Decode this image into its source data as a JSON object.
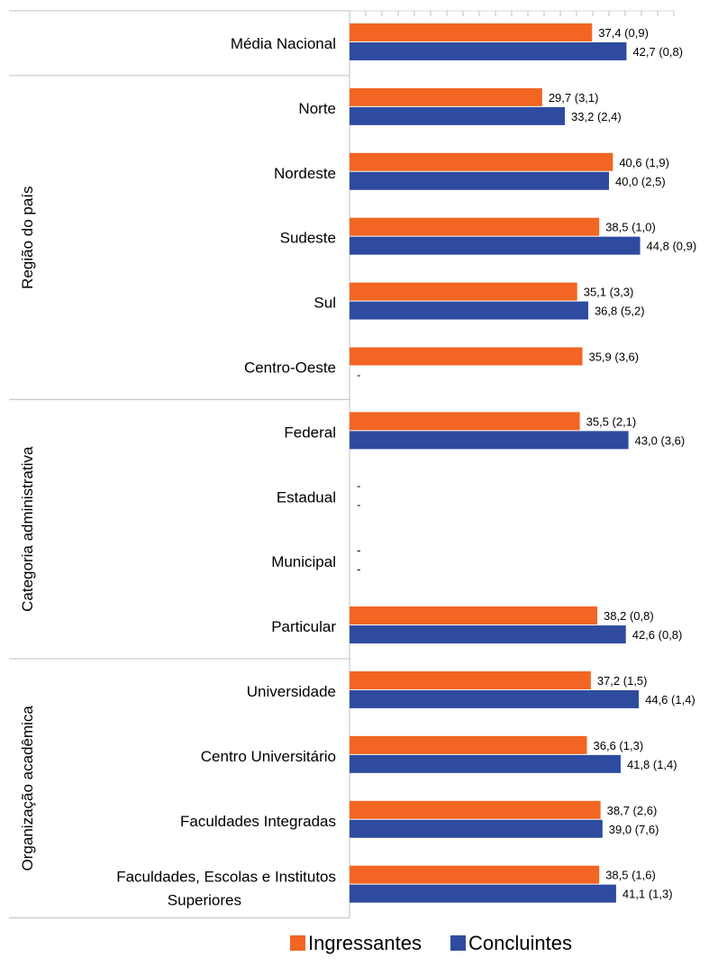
{
  "chart_data": {
    "type": "bar",
    "orientation": "horizontal",
    "xlim": [
      0,
      50
    ],
    "grid": false,
    "legend_position": "bottom",
    "categories": [
      "Média Nacional",
      "Norte",
      "Nordeste",
      "Sudeste",
      "Sul",
      "Centro-Oeste",
      "Federal",
      "Estadual",
      "Municipal",
      "Particular",
      "Universidade",
      "Centro Universitário",
      "Faculdades Integradas",
      "Faculdades, Escolas e Institutos Superiores"
    ],
    "groups": [
      {
        "name": "",
        "categories": [
          "Média Nacional"
        ]
      },
      {
        "name": "Região do país",
        "categories": [
          "Norte",
          "Nordeste",
          "Sudeste",
          "Sul",
          "Centro-Oeste"
        ]
      },
      {
        "name": "Categoria administrativa",
        "categories": [
          "Federal",
          "Estadual",
          "Municipal",
          "Particular"
        ]
      },
      {
        "name": "Organização acadêmica",
        "categories": [
          "Universidade",
          "Centro Universitário",
          "Faculdades Integradas",
          "Faculdades, Escolas e Institutos Superiores"
        ]
      }
    ],
    "series": [
      {
        "name": "Ingressantes",
        "color": "#F26522",
        "values": [
          37.4,
          29.7,
          40.6,
          38.5,
          35.1,
          35.9,
          35.5,
          null,
          null,
          38.2,
          37.2,
          36.6,
          38.7,
          38.5
        ],
        "labels": [
          "37,4 (0,9)",
          "29,7 (3,1)",
          "40,6 (1,9)",
          "38,5 (1,0)",
          "35,1 (3,3)",
          "35,9 (3,6)",
          "35,5 (2,1)",
          "-",
          "-",
          "38,2 (0,8)",
          "37,2 (1,5)",
          "36,6 (1,3)",
          "38,7 (2,6)",
          "38,5 (1,6)"
        ]
      },
      {
        "name": "Concluintes",
        "color": "#2E4BA0",
        "values": [
          42.7,
          33.2,
          40.0,
          44.8,
          36.8,
          null,
          43.0,
          null,
          null,
          42.6,
          44.6,
          41.8,
          39.0,
          41.1
        ],
        "labels": [
          "42,7 (0,8)",
          "33,2 (2,4)",
          "40,0 (2,5)",
          "44,8 (0,9)",
          "36,8 (5,2)",
          "-",
          "43,0 (3,6)",
          "-",
          "-",
          "42,6 (0,8)",
          "44,6 (1,4)",
          "41,8 (1,4)",
          "39,0 (7,6)",
          "41,1 (1,3)"
        ]
      }
    ]
  }
}
